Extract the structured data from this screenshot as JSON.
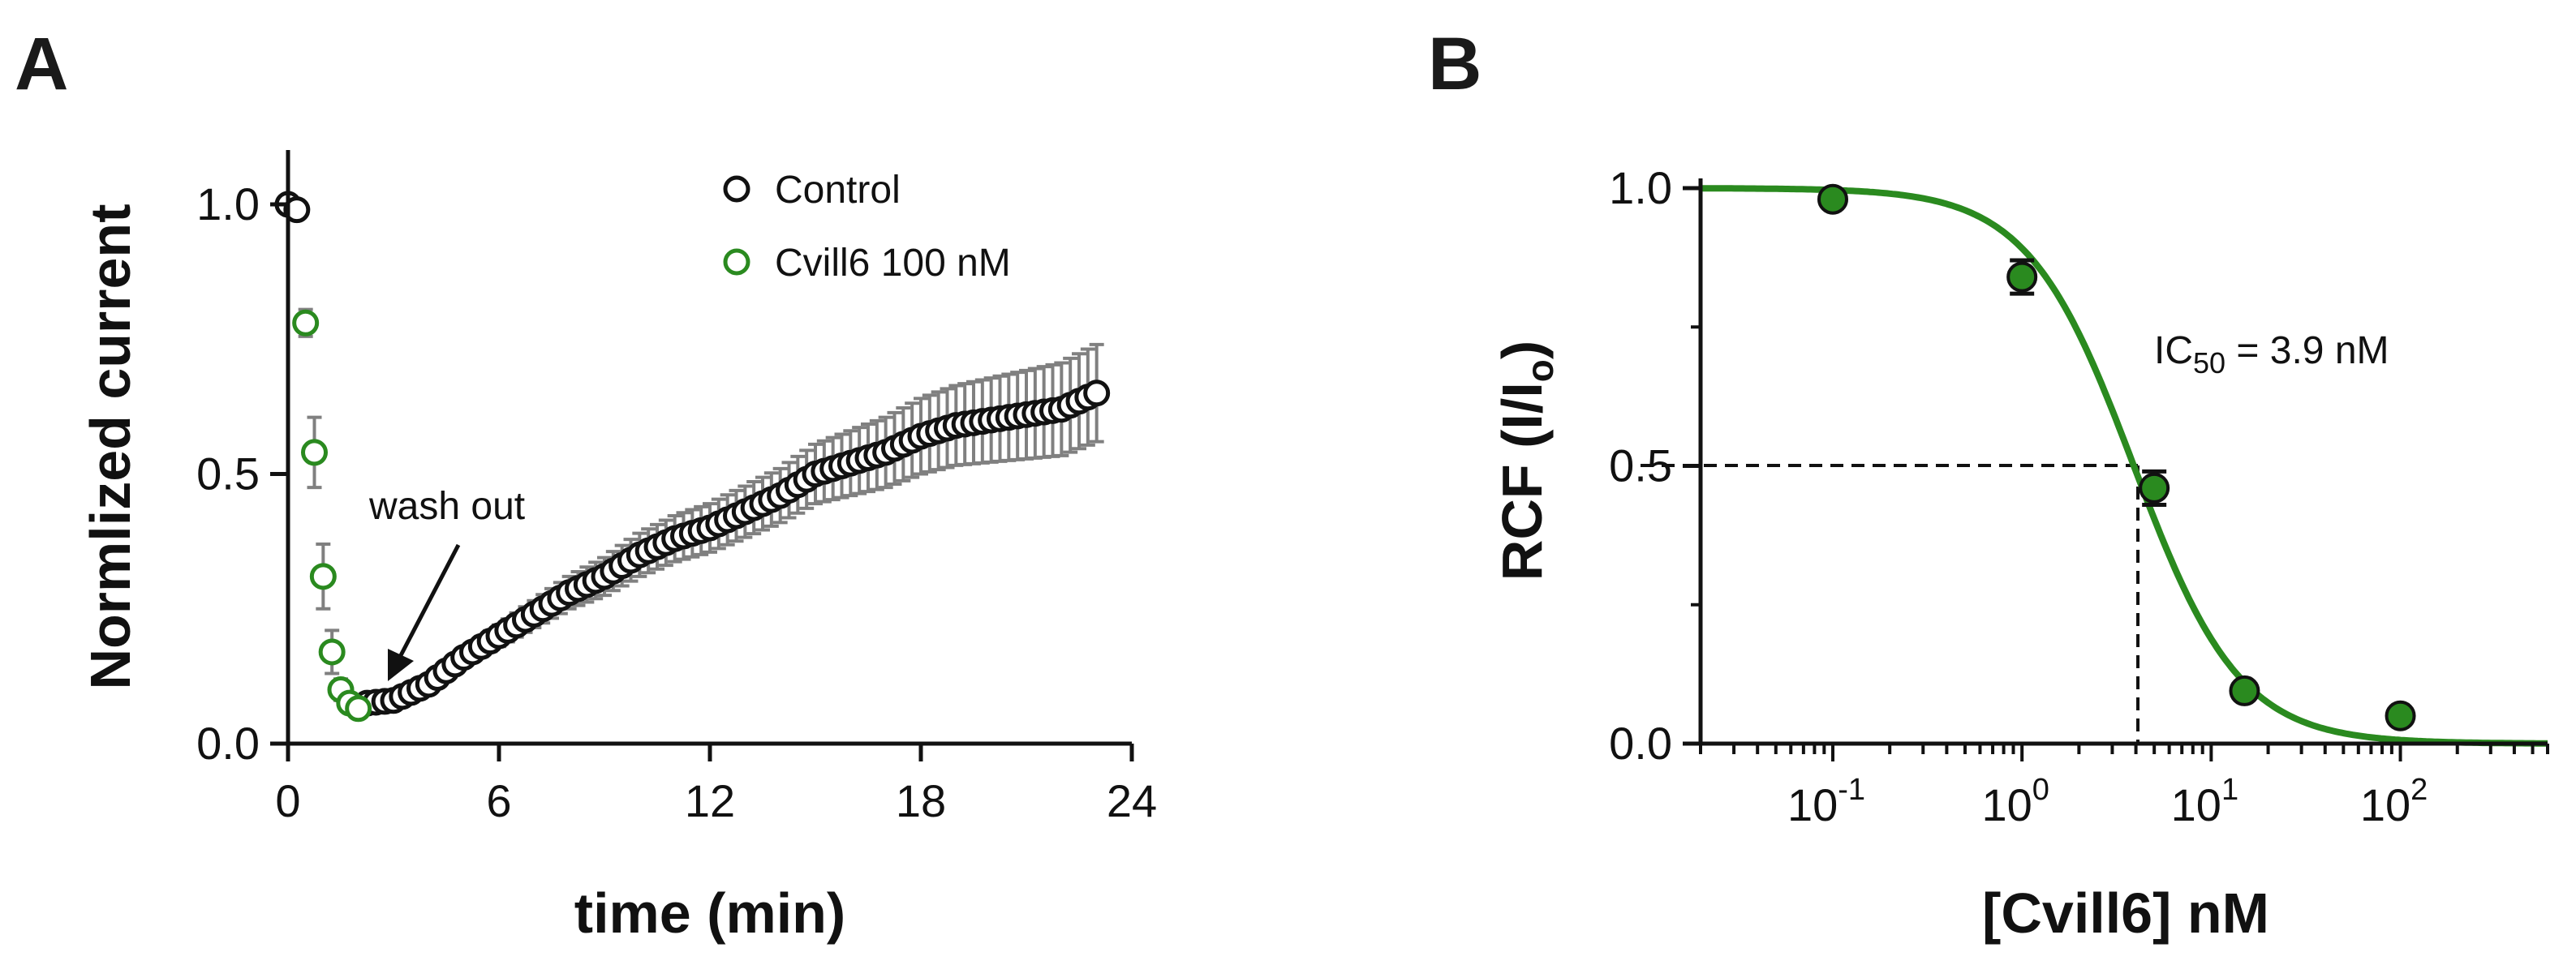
{
  "figure": {
    "panel_a_letter": "A",
    "panel_b_letter": "B"
  },
  "chart_data": [
    {
      "type": "scatter",
      "panel": "A",
      "title": "",
      "xlabel": "time (min)",
      "ylabel": "Normlized current",
      "xlim": [
        0,
        24
      ],
      "ylim": [
        0,
        1.05
      ],
      "xticks": [
        0,
        6,
        12,
        18,
        24
      ],
      "xtick_labels": [
        "0",
        "6",
        "12",
        "18",
        "24"
      ],
      "yticks": [
        0,
        0.5,
        1.0
      ],
      "ytick_labels": [
        "0.0",
        "0.5",
        "1.0"
      ],
      "legend": [
        "Control",
        "Cvill6 100 nM"
      ],
      "legend_position": "top-center",
      "annotation": "wash out",
      "colors": {
        "Control": "#111111",
        "Cvill6 100 nM": "#2a8a1f",
        "error_bar": "#808080"
      },
      "series": [
        {
          "name": "Control",
          "x": [
            0,
            0.25
          ],
          "y": [
            1.0,
            0.99
          ],
          "err": [
            0.005,
            0.01
          ]
        },
        {
          "name": "Cvill6 100 nM",
          "x": [
            0.5,
            0.75,
            1.0,
            1.25,
            1.5,
            1.75,
            2.0
          ],
          "y": [
            0.78,
            0.54,
            0.31,
            0.17,
            0.1,
            0.075,
            0.065
          ],
          "err": [
            0.025,
            0.065,
            0.06,
            0.04,
            0.02,
            0.015,
            0.01
          ]
        },
        {
          "name": "Control (wash out)",
          "x_start": 2.25,
          "x_end": 23.0,
          "x_step": 0.25,
          "y_knots_x": [
            2.25,
            3,
            4,
            5,
            6,
            7,
            8,
            9,
            10,
            11,
            12,
            13,
            14,
            15,
            16,
            17,
            18,
            19,
            20,
            21,
            22,
            23
          ],
          "y_knots_y": [
            0.075,
            0.08,
            0.11,
            0.16,
            0.2,
            0.24,
            0.28,
            0.31,
            0.35,
            0.38,
            0.4,
            0.43,
            0.46,
            0.5,
            0.52,
            0.54,
            0.57,
            0.59,
            0.6,
            0.61,
            0.62,
            0.65
          ],
          "err_knots_x": [
            2.25,
            6,
            10,
            14,
            18,
            23
          ],
          "err_knots_y": [
            0.01,
            0.02,
            0.04,
            0.05,
            0.07,
            0.09
          ]
        }
      ]
    },
    {
      "type": "scatter",
      "panel": "B",
      "title": "",
      "xlabel": "[Cvill6] nM",
      "ylabel_main": "RCF (I/I",
      "ylabel_sub": "o",
      "ylabel_end": ")",
      "xscale": "log",
      "xlim": [
        0.02,
        600
      ],
      "ylim": [
        0,
        1.0
      ],
      "xticks": [
        0.1,
        1,
        10,
        100
      ],
      "xtick_labels": [
        {
          "base": "10",
          "exp": "-1"
        },
        {
          "base": "10",
          "exp": "0"
        },
        {
          "base": "10",
          "exp": "1"
        },
        {
          "base": "10",
          "exp": "2"
        }
      ],
      "yticks": [
        0,
        0.5,
        1.0
      ],
      "ytick_labels": [
        "0.0",
        "0.5",
        "1.0"
      ],
      "ic50_label": {
        "prefix": "IC",
        "sub": "50",
        "suffix": " = 3.9 nM"
      },
      "ic50": 3.9,
      "hill": 1.55,
      "colors": {
        "fit": "#2a8a1f",
        "points": "#2a8a1f"
      },
      "series": [
        {
          "name": "RCF",
          "x": [
            0.1,
            1,
            5,
            15,
            100
          ],
          "y": [
            0.98,
            0.84,
            0.46,
            0.095,
            0.05
          ],
          "err": [
            0.01,
            0.03,
            0.03,
            0.01,
            0.01
          ]
        }
      ]
    }
  ]
}
